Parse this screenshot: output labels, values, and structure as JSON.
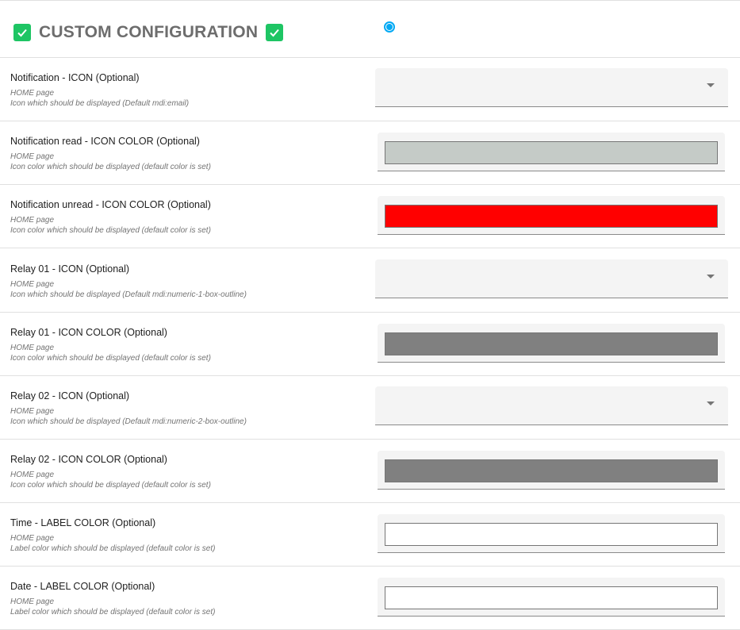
{
  "header": {
    "title": "CUSTOM CONFIGURATION",
    "radio_selected": true
  },
  "rows": [
    {
      "label": "Notification - ICON (Optional)",
      "page": "HOME page",
      "desc": "Icon which should be displayed (Default mdi:email)",
      "type": "select",
      "value": ""
    },
    {
      "label": "Notification read - ICON COLOR (Optional)",
      "page": "HOME page",
      "desc": "Icon color which should be displayed (default color is set)",
      "type": "color",
      "color": "#c5cbc7"
    },
    {
      "label": "Notification unread - ICON COLOR (Optional)",
      "page": "HOME page",
      "desc": "Icon color which should be displayed (default color is set)",
      "type": "color",
      "color": "#ff0000"
    },
    {
      "label": "Relay 01 - ICON (Optional)",
      "page": "HOME page",
      "desc": "Icon which should be displayed (Default mdi:numeric-1-box-outline)",
      "type": "select",
      "value": ""
    },
    {
      "label": "Relay 01 - ICON COLOR (Optional)",
      "page": "HOME page",
      "desc": "Icon color which should be displayed (default color is set)",
      "type": "color",
      "color": "#808080"
    },
    {
      "label": "Relay 02 - ICON (Optional)",
      "page": "HOME page",
      "desc": "Icon which should be displayed (Default mdi:numeric-2-box-outline)",
      "type": "select",
      "value": ""
    },
    {
      "label": "Relay 02 - ICON COLOR (Optional)",
      "page": "HOME page",
      "desc": "Icon color which should be displayed (default color is set)",
      "type": "color",
      "color": "#808080"
    },
    {
      "label": "Time - LABEL COLOR (Optional)",
      "page": "HOME page",
      "desc": "Label color which should be displayed (default color is set)",
      "type": "color",
      "color": "#ffffff"
    },
    {
      "label": "Date - LABEL COLOR (Optional)",
      "page": "HOME page",
      "desc": "Label color which should be displayed (default color is set)",
      "type": "color",
      "color": "#ffffff"
    }
  ]
}
